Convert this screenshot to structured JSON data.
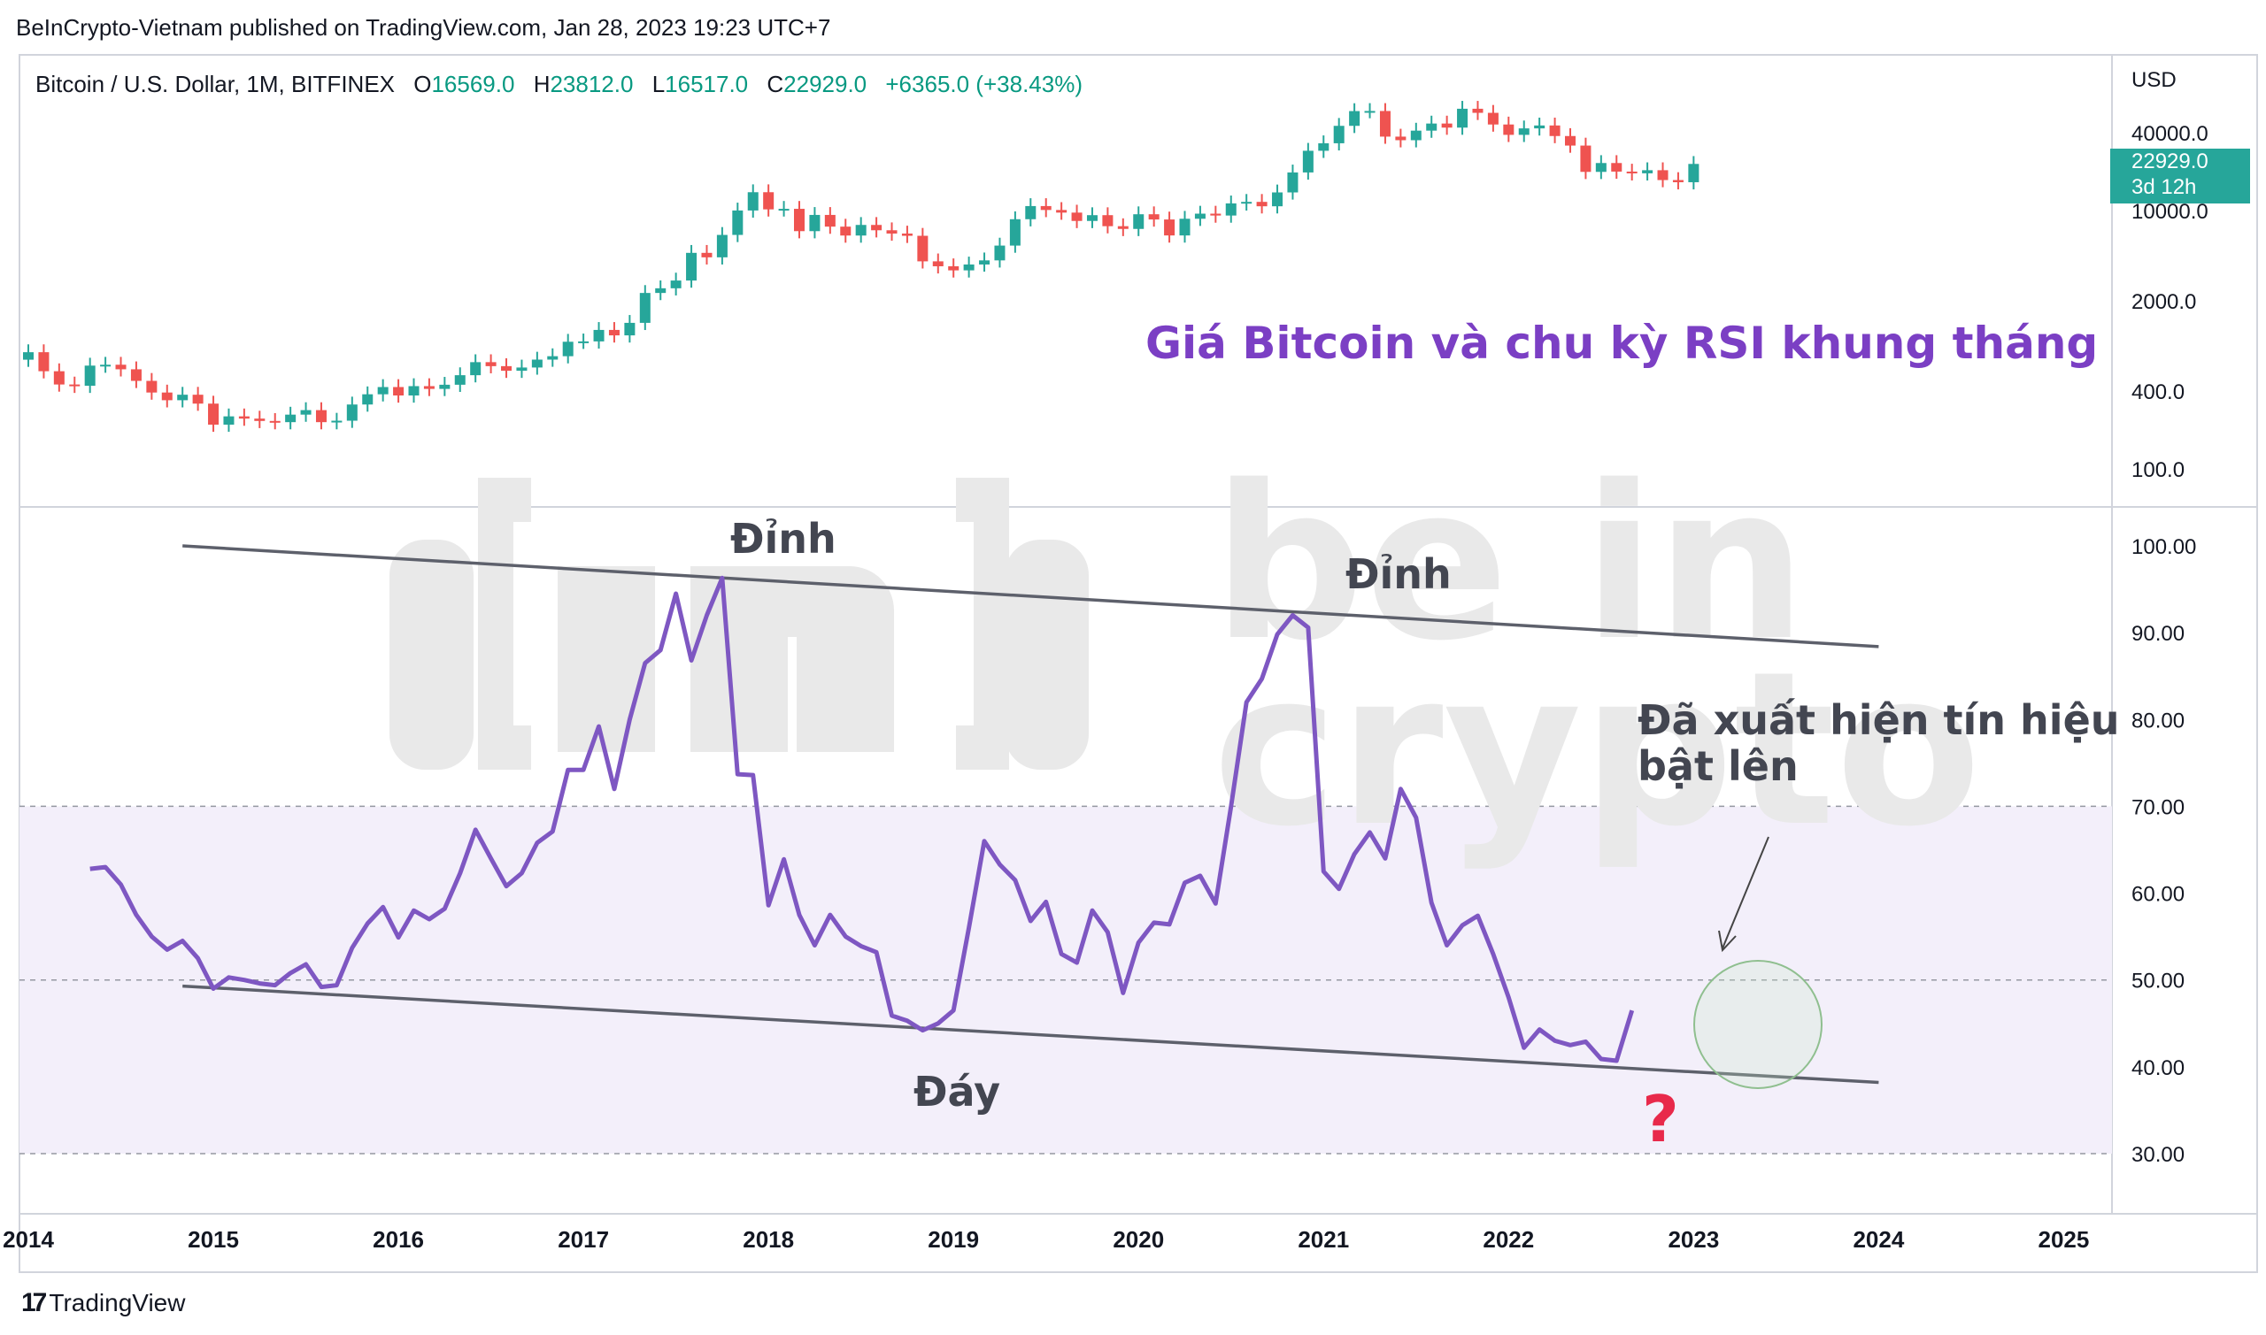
{
  "header": {
    "attribution": "BeInCrypto-Vietnam published on TradingView.com, Jan 28, 2023 19:23 UTC+7",
    "symbol": "Bitcoin / U.S. Dollar, 1M, BITFINEX",
    "open_label": "O",
    "open": "16569.0",
    "high_label": "H",
    "high": "23812.0",
    "low_label": "L",
    "low": "16517.0",
    "close_label": "C",
    "close": "22929.0",
    "change": "+6365.0 (+38.43%)"
  },
  "price_axis": {
    "currency": "USD",
    "ticks": [
      "40000.0",
      "10000.0",
      "2000.0",
      "400.0",
      "100.0"
    ],
    "last_price": "22929.0",
    "countdown": "3d 12h"
  },
  "rsi_axis": {
    "ticks": [
      "100.00",
      "90.00",
      "80.00",
      "70.00",
      "60.00",
      "50.00",
      "40.00",
      "30.00"
    ]
  },
  "time_axis": {
    "ticks": [
      "2014",
      "2015",
      "2016",
      "2017",
      "2018",
      "2019",
      "2020",
      "2021",
      "2022",
      "2023",
      "2024",
      "2025"
    ]
  },
  "annotations": {
    "title": "Giá Bitcoin và chu kỳ RSI khung tháng",
    "peak_1": "Đỉnh",
    "peak_2": "Đỉnh",
    "bottom": "Đáy",
    "signal_line1": "Đã xuất hiện tín hiệu",
    "signal_line2": "bật lên",
    "question": "?"
  },
  "watermark": {
    "line1": "be in",
    "line2": "crypto"
  },
  "footer": {
    "brand": "TradingView"
  },
  "colors": {
    "up": "#26a69a",
    "down": "#ef5350",
    "rsi_line": "#7e57c2",
    "rsi_band": "#f3effa",
    "title": "#7b3fc4",
    "question": "#e8294a",
    "circle": "#8fbf8f"
  },
  "chart_data": [
    {
      "type": "candlestick",
      "title": "Bitcoin / U.S. Dollar, 1M, BITFINEX",
      "y_scale": "log",
      "ylabel": "USD",
      "x_start": "2014-01",
      "interval": "1M",
      "closes": [
        800,
        570,
        450,
        440,
        630,
        640,
        590,
        480,
        390,
        340,
        375,
        320,
        220,
        255,
        245,
        235,
        230,
        263,
        285,
        230,
        236,
        315,
        378,
        430,
        370,
        437,
        416,
        448,
        531,
        670,
        624,
        575,
        609,
        701,
        745,
        964,
        970,
        1190,
        1080,
        1350,
        2300,
        2500,
        2870,
        4700,
        4340,
        6470,
        10000,
        13850,
        10200,
        10300,
        6920,
        9240,
        7500,
        6400,
        7730,
        7030,
        6630,
        6370,
        4040,
        3700,
        3440,
        3820,
        4110,
        5350,
        8560,
        10820,
        10090,
        9630,
        8300,
        9200,
        7560,
        7200,
        9350,
        8520,
        6410,
        8630,
        9450,
        9140,
        11350,
        11660,
        10780,
        13800,
        19700,
        28990,
        33140,
        45200,
        58800,
        58900,
        37300,
        35000,
        41500,
        47100,
        43800,
        61300,
        57000,
        46300,
        38500,
        43200,
        45500,
        37700,
        31800,
        19900,
        23300,
        20000,
        19400,
        20500,
        17200,
        16550,
        22929
      ],
      "last_price": 22929
    },
    {
      "type": "line",
      "series": [
        {
          "name": "RSI",
          "x_start": "2014-05",
          "values": [
            62.8,
            63.0,
            61.0,
            57.5,
            55.0,
            53.5,
            54.5,
            52.5,
            49.0,
            50.3,
            50.0,
            49.6,
            49.4,
            50.8,
            51.8,
            49.2,
            49.4,
            53.7,
            56.5,
            58.4,
            54.9,
            58.0,
            57.0,
            58.2,
            62.3,
            67.3,
            64.0,
            60.8,
            62.3,
            65.8,
            67.1,
            74.2,
            74.2,
            79.2,
            72.0,
            80.0,
            86.5,
            88.0,
            94.5,
            86.8,
            92.0,
            96.3,
            73.7,
            73.6,
            58.6,
            63.9,
            57.5,
            54.0,
            57.5,
            55.0,
            53.9,
            53.2,
            45.9,
            45.3,
            44.2,
            45.0,
            46.5,
            56.0,
            66.0,
            63.3,
            61.5,
            56.8,
            59.0,
            53.0,
            52.0,
            58.0,
            55.5,
            48.5,
            54.3,
            56.6,
            56.4,
            61.2,
            62.0,
            58.8,
            70.0,
            82.0,
            84.7,
            89.8,
            92.0,
            90.6,
            62.5,
            60.5,
            64.5,
            67.0,
            64.0,
            72.0,
            68.7,
            58.9,
            54.0,
            56.3,
            57.4,
            53.0,
            48.0,
            42.2,
            44.3,
            43.0,
            42.5,
            42.9,
            40.9,
            40.7,
            46.5
          ]
        }
      ],
      "ylim": [
        25,
        105
      ],
      "bands": [
        30,
        50,
        70
      ],
      "trendlines": [
        {
          "name": "upper",
          "from": [
            "2014-11",
            100.0
          ],
          "to": [
            "2024-01",
            88.4
          ]
        },
        {
          "name": "lower",
          "from": [
            "2014-11",
            49.3
          ],
          "to": [
            "2024-01",
            38.2
          ]
        }
      ]
    }
  ]
}
